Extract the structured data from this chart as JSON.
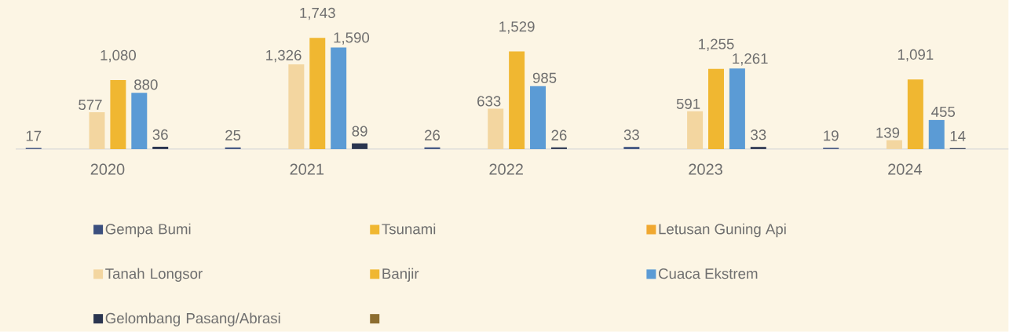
{
  "chart_data": {
    "type": "bar",
    "categories": [
      "2020",
      "2021",
      "2022",
      "2023",
      "2024"
    ],
    "series": [
      {
        "name": "Gempa Bumi",
        "color": "#3b4f7e",
        "values": [
          17,
          25,
          26,
          33,
          19
        ],
        "value_labels": [
          "17",
          "25",
          "26",
          "33",
          "19"
        ]
      },
      {
        "name": "Tsunami",
        "color": "#f0b731",
        "values": [
          null,
          null,
          null,
          null,
          null
        ]
      },
      {
        "name": "Letusan Guning Api",
        "color": "#f0a830",
        "values": [
          null,
          null,
          null,
          null,
          null
        ]
      },
      {
        "name": "Tanah Longsor",
        "color": "#f3d6a0",
        "values": [
          577,
          1326,
          633,
          591,
          139
        ],
        "value_labels": [
          "577",
          "1,326",
          "633",
          "591",
          "139"
        ]
      },
      {
        "name": "Banjir",
        "color": "#f0b731",
        "values": [
          1080,
          1743,
          1529,
          1255,
          1091
        ],
        "value_labels": [
          "1,080",
          "1,743",
          "1,529",
          "1,255",
          "1,091"
        ]
      },
      {
        "name": "Cuaca Ekstrem",
        "color": "#5b9bd5",
        "values": [
          880,
          1590,
          985,
          1261,
          455
        ],
        "value_labels": [
          "880",
          "1,590",
          "985",
          "1,261",
          "455"
        ]
      },
      {
        "name": "Gelombang Pasang/Abrasi",
        "color": "#2a3550",
        "values": [
          36,
          89,
          26,
          33,
          14
        ],
        "value_labels": [
          "36",
          "89",
          "26",
          "33",
          "14"
        ]
      },
      {
        "color": "#8c6d30",
        "values": [
          null,
          null,
          null,
          null,
          null
        ]
      }
    ],
    "legend": "bottom"
  }
}
